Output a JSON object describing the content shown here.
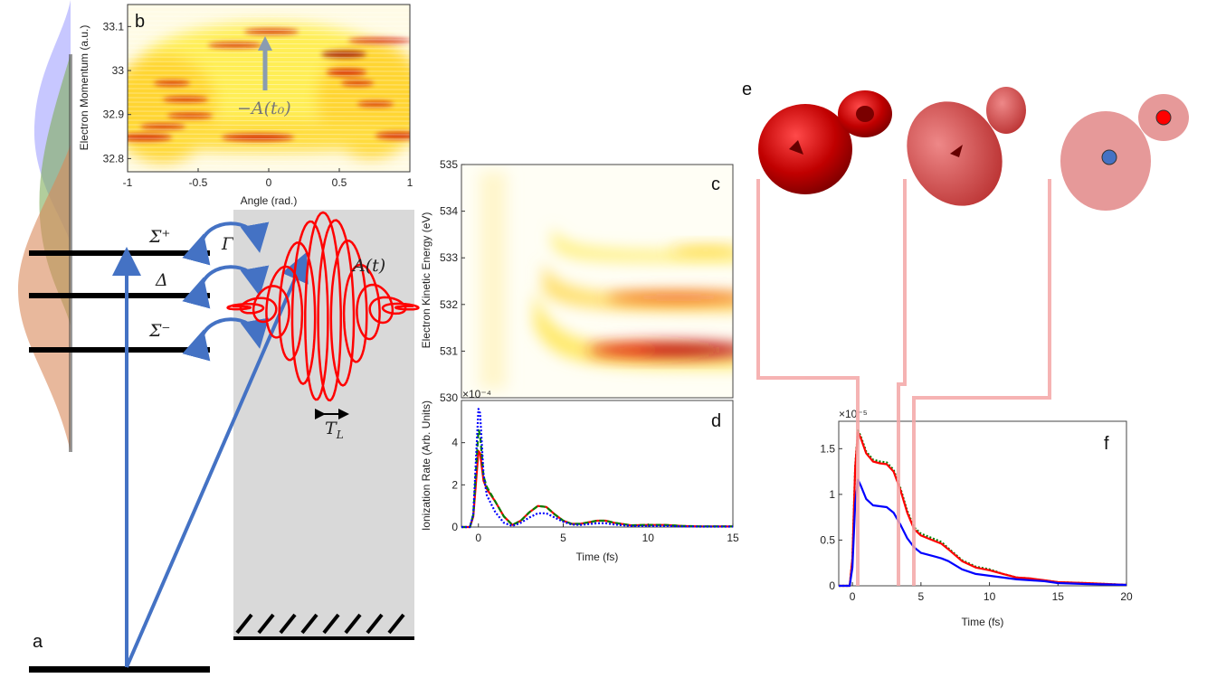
{
  "panel_labels": {
    "a": "a",
    "b": "b",
    "c": "c",
    "d": "d",
    "e": "e",
    "f": "f"
  },
  "diagram_a": {
    "state_labels": [
      "Σ⁺",
      "Δ",
      "Σ⁻"
    ],
    "coupling_label": "Γ",
    "field_label": "A(t)",
    "period_label": "T",
    "period_subscript": "L",
    "colors": {
      "arrows": "#4472c4",
      "pulse": "#ff0000",
      "box": "#d9d9d9",
      "levels": "#000000"
    }
  },
  "panel_e": {
    "orbital_color": "#c00000",
    "atom_colors": [
      "#4472c4",
      "#ff0000"
    ],
    "connector_color": "#f4a6a6"
  },
  "chart_data": [
    {
      "id": "b",
      "type": "heatmap",
      "xlabel": "Angle (rad.)",
      "ylabel": "Electron Momentum (a.u.)",
      "xlim": [
        -1,
        1
      ],
      "ylim": [
        32.77,
        33.15
      ],
      "xticks": [
        "-1",
        "-0.5",
        "0",
        "0.5",
        "1"
      ],
      "xtick_values": [
        -1,
        -0.5,
        0,
        0.5,
        1
      ],
      "yticks": [
        "32.8",
        "32.9",
        "33",
        "33.1"
      ],
      "ytick_values": [
        32.8,
        32.9,
        33,
        33.1
      ],
      "annotation": "−A(t₀)",
      "colormap": "hot"
    },
    {
      "id": "c",
      "type": "heatmap",
      "ylabel": "Electron Kinetic Energy (eV)",
      "ylim": [
        530,
        535
      ],
      "yticks": [
        "530",
        "531",
        "532",
        "533",
        "534",
        "535"
      ],
      "ytick_values": [
        530,
        531,
        532,
        533,
        534,
        535
      ],
      "bands_eV": [
        531,
        532.2,
        533.1
      ],
      "colormap": "hot"
    },
    {
      "id": "d",
      "type": "line",
      "xlabel": "Time (fs)",
      "ylabel": "Ionization Rate (Arb. Units)",
      "exponent": "×10⁻⁴",
      "xlim": [
        -1,
        15
      ],
      "ylim": [
        0,
        6
      ],
      "xticks": [
        "0",
        "5",
        "10",
        "15"
      ],
      "xtick_values": [
        0,
        5,
        10,
        15
      ],
      "yticks": [
        "0",
        "2",
        "4"
      ],
      "ytick_values": [
        0,
        2,
        4
      ],
      "x": [
        -1,
        -0.5,
        -0.3,
        0,
        0.1,
        0.3,
        0.5,
        1,
        1.5,
        2,
        2.5,
        3,
        3.5,
        4,
        4.5,
        5,
        5.5,
        6,
        7,
        7.5,
        8,
        9,
        10,
        11,
        12,
        13,
        14,
        15
      ],
      "series": [
        {
          "color": "#ff0000",
          "style": "solid",
          "values": [
            0,
            0,
            0.5,
            3.6,
            3.5,
            2.2,
            1.8,
            1.2,
            0.5,
            0.1,
            0.3,
            0.7,
            1.0,
            0.95,
            0.6,
            0.3,
            0.15,
            0.15,
            0.3,
            0.3,
            0.2,
            0.08,
            0.1,
            0.1,
            0.05,
            0.03,
            0.03,
            0.03
          ]
        },
        {
          "color": "#008000",
          "style": "dashed",
          "values": [
            0,
            0,
            0.6,
            4.6,
            4.4,
            2.4,
            1.9,
            1.2,
            0.5,
            0.1,
            0.3,
            0.7,
            1.0,
            0.95,
            0.6,
            0.3,
            0.15,
            0.15,
            0.3,
            0.3,
            0.2,
            0.08,
            0.1,
            0.1,
            0.05,
            0.03,
            0.03,
            0.03
          ]
        },
        {
          "color": "#0000ff",
          "style": "dotted",
          "values": [
            0,
            0,
            0.6,
            5.6,
            5.4,
            2.5,
            1.5,
            0.7,
            0.2,
            0.05,
            0.2,
            0.45,
            0.65,
            0.65,
            0.45,
            0.25,
            0.12,
            0.1,
            0.18,
            0.18,
            0.12,
            0.05,
            0.05,
            0.05,
            0.03,
            0.02,
            0.02,
            0.02
          ]
        }
      ]
    },
    {
      "id": "f",
      "type": "line",
      "xlabel": "Time (fs)",
      "exponent": "×10⁻⁵",
      "xlim": [
        -1,
        20
      ],
      "ylim": [
        0,
        1.8
      ],
      "xticks": [
        "0",
        "5",
        "10",
        "15",
        "20"
      ],
      "xtick_values": [
        0,
        5,
        10,
        15,
        20
      ],
      "yticks": [
        "0",
        "0.5",
        "1",
        "1.5"
      ],
      "ytick_values": [
        0,
        0.5,
        1,
        1.5
      ],
      "x": [
        -1,
        -0.2,
        0,
        0.2,
        0.4,
        0.6,
        1,
        1.5,
        2,
        2.5,
        3,
        3.5,
        4,
        4.5,
        5,
        6,
        6.5,
        7,
        8,
        9,
        10,
        11,
        12,
        13,
        14,
        15,
        17,
        20
      ],
      "series": [
        {
          "color": "#008000",
          "style": "dotted",
          "values": [
            0,
            0,
            0.3,
            1.31,
            1.7,
            1.64,
            1.47,
            1.38,
            1.36,
            1.35,
            1.27,
            1.07,
            0.82,
            0.64,
            0.57,
            0.51,
            0.48,
            0.41,
            0.28,
            0.21,
            0.18,
            0.13,
            0.09,
            0.08,
            0.06,
            0.04,
            0.03,
            0.01
          ]
        },
        {
          "color": "#ff0000",
          "style": "solid",
          "values": [
            0,
            0,
            0.3,
            1.3,
            1.68,
            1.62,
            1.45,
            1.36,
            1.34,
            1.33,
            1.25,
            1.05,
            0.8,
            0.62,
            0.55,
            0.49,
            0.46,
            0.4,
            0.27,
            0.2,
            0.17,
            0.13,
            0.09,
            0.08,
            0.06,
            0.04,
            0.03,
            0.01
          ]
        },
        {
          "color": "#0000ff",
          "style": "solid",
          "values": [
            0,
            0,
            0.2,
            0.9,
            1.16,
            1.1,
            0.95,
            0.88,
            0.87,
            0.86,
            0.8,
            0.67,
            0.52,
            0.42,
            0.36,
            0.32,
            0.3,
            0.27,
            0.18,
            0.13,
            0.11,
            0.09,
            0.07,
            0.06,
            0.05,
            0.03,
            0.02,
            0.01
          ]
        }
      ]
    }
  ]
}
